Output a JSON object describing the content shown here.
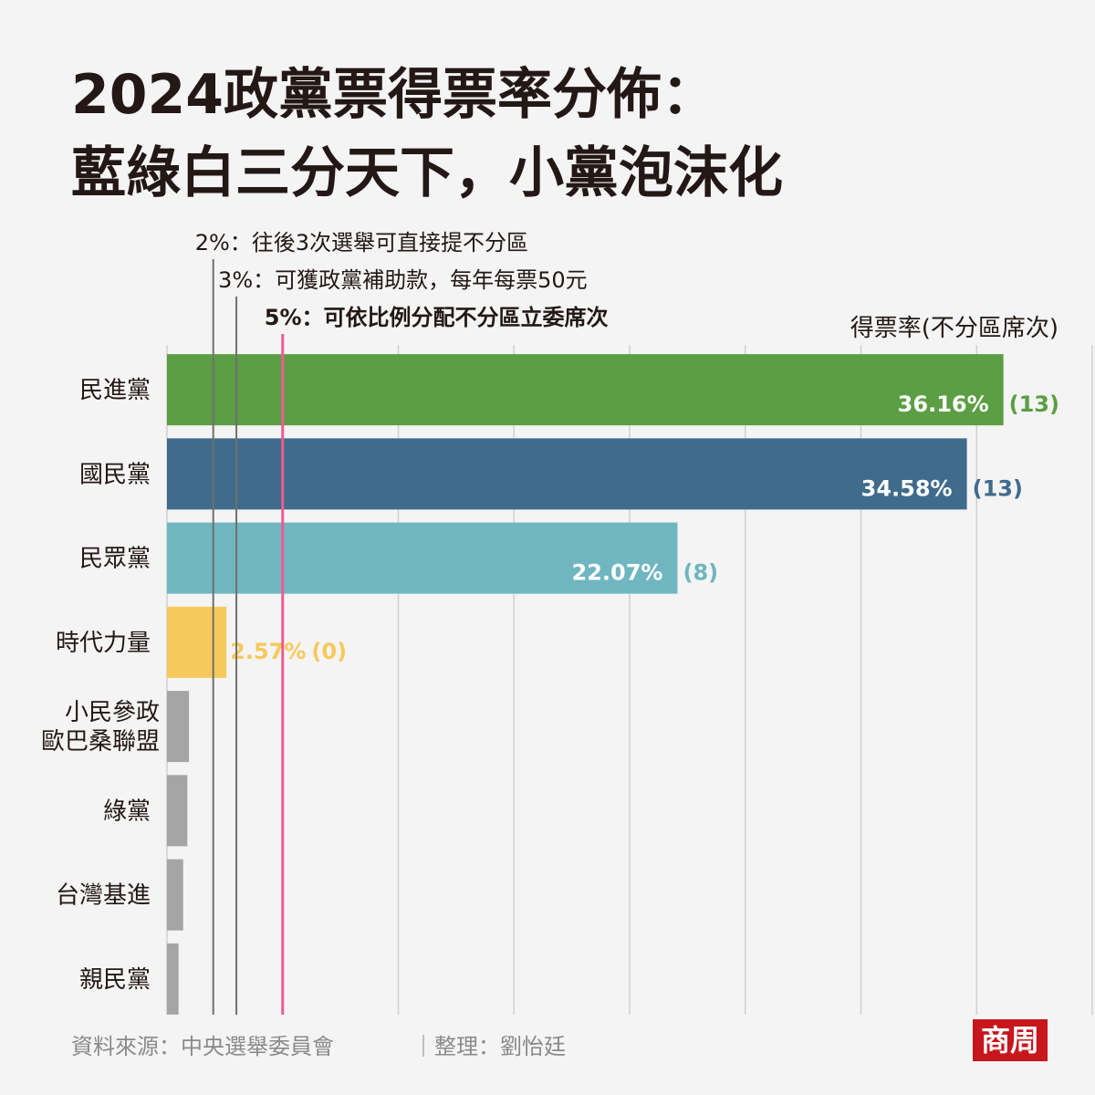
{
  "chart_data": {
    "type": "bar",
    "orientation": "horizontal",
    "title_lines": [
      "2024政黨票得票率分佈：",
      "藍綠白三分天下，小黨泡沫化"
    ],
    "axis_label": "得票率(不分區席次)",
    "categories": [
      "民進黨",
      "國民黨",
      "民眾黨",
      "時代力量",
      "小民參政\n歐巴桑聯盟",
      "綠黨",
      "台灣基進",
      "親民黨"
    ],
    "values": [
      36.16,
      34.58,
      22.07,
      2.57,
      0.95,
      0.88,
      0.7,
      0.5
    ],
    "value_labels": [
      "36.16%",
      "34.58%",
      "22.07%",
      "2.57%",
      null,
      null,
      null,
      null
    ],
    "seat_labels": [
      "(13)",
      "(13)",
      "(8)",
      "(0)",
      null,
      null,
      null,
      null
    ],
    "colors": [
      "#5b9e43",
      "#3f6b8c",
      "#6fb6c0",
      "#f5c95b",
      "#a5a5a5",
      "#a5a5a5",
      "#a5a5a5",
      "#a5a5a5"
    ],
    "xlim": [
      0,
      40
    ],
    "xticks": [
      0,
      5,
      10,
      15,
      20,
      25,
      30,
      35,
      40
    ],
    "grid": true,
    "reference_lines": [
      {
        "value": 2,
        "label": "2%：往後3次選舉可直接提不分區",
        "color": "#707070"
      },
      {
        "value": 3,
        "label": "3%：可獲政黨補助款，每年每票50元",
        "color": "#707070"
      },
      {
        "value": 5,
        "label": "5%：可依比例分配不分區立委席次",
        "color": "#ee5b93"
      }
    ]
  },
  "footer": {
    "source": "資料來源：中央選舉委員會",
    "credit": "｜整理：劉怡廷",
    "logo": "商周"
  }
}
